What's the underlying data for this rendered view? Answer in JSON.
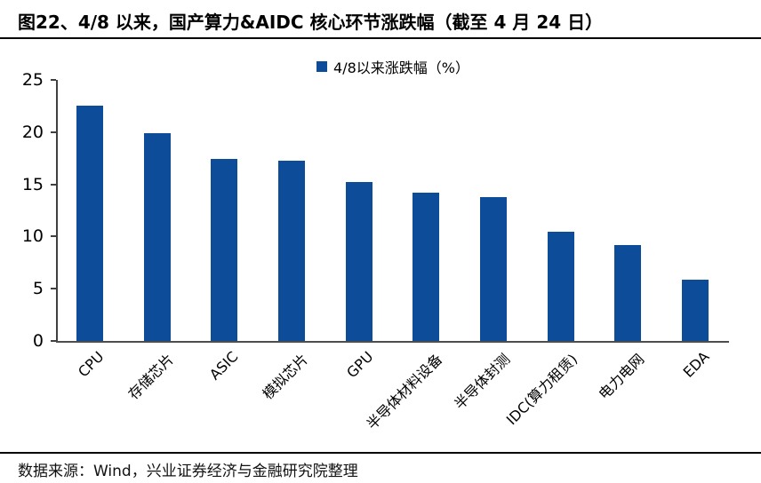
{
  "title": "图22、4/8 以来，国产算力&AIDC 核心环节涨跌幅（截至 4 月 24 日）",
  "source": "数据来源：Wind，兴业证券经济与金融研究院整理",
  "colors": {
    "bar": "#0C4C99",
    "axis": "#404040",
    "baseline": "#4D4D4D",
    "rule": "#000000",
    "text": "#000000"
  },
  "chart_data": {
    "type": "bar",
    "title": "图22、4/8 以来，国产算力&AIDC 核心环节涨跌幅（截至 4 月 24 日）",
    "legend": "4/8以来涨跌幅（%）",
    "legend_position": "top-center",
    "categories": [
      "CPU",
      "存储芯片",
      "ASIC",
      "模拟芯片",
      "GPU",
      "半导体材料设备",
      "半导体封测",
      "IDC(算力租赁)",
      "电力电网",
      "EDA"
    ],
    "values": [
      22.5,
      19.9,
      17.4,
      17.3,
      15.2,
      14.2,
      13.8,
      10.5,
      9.2,
      5.9
    ],
    "xlabel": "",
    "ylabel": "",
    "ylim": [
      0,
      25
    ],
    "yticks": [
      0,
      5,
      10,
      15,
      20,
      25
    ],
    "grid": false,
    "x_tick_rotation_deg": 45
  }
}
